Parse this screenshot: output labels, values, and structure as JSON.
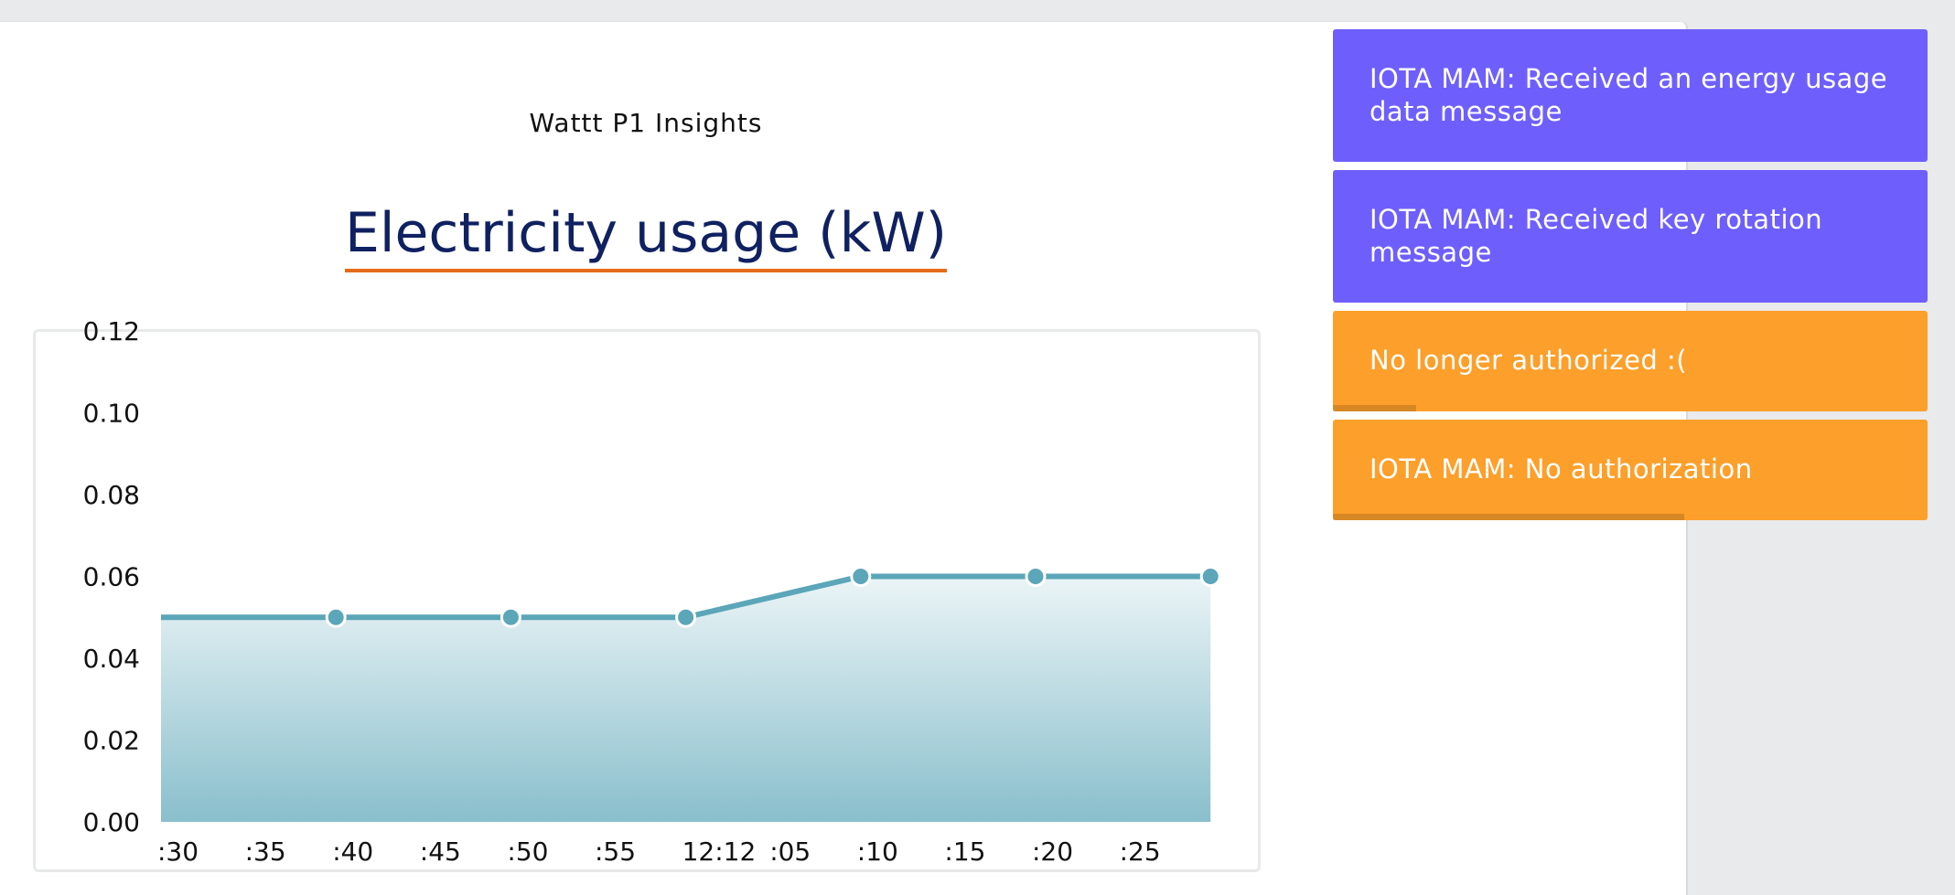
{
  "app": {
    "title": "Wattt P1 Insights"
  },
  "chart_data": {
    "type": "area",
    "title": "Electricity usage (kW)",
    "x_tick_labels": [
      ":30",
      ":35",
      ":40",
      ":45",
      ":50",
      ":55",
      "12:12",
      ":05",
      ":10",
      ":15",
      ":20",
      ":25"
    ],
    "y_tick_labels": [
      "0.00",
      "0.02",
      "0.04",
      "0.06",
      "0.08",
      "0.10",
      "0.12"
    ],
    "ylim": [
      0,
      0.12
    ],
    "grid": false,
    "series": [
      {
        "color": "#5ba6b8",
        "points": [
          {
            "x": ":30",
            "y": 0.05,
            "marker": false
          },
          {
            "x": ":40",
            "y": 0.05,
            "marker": true
          },
          {
            "x": ":50",
            "y": 0.05,
            "marker": true
          },
          {
            "x": "12:12",
            "y": 0.05,
            "marker": true
          },
          {
            "x": ":10",
            "y": 0.06,
            "marker": true
          },
          {
            "x": ":20",
            "y": 0.06,
            "marker": true
          },
          {
            "x": ":25+",
            "y": 0.06,
            "marker": true
          }
        ]
      }
    ]
  },
  "toasts": [
    {
      "type": "info",
      "message": "IOTA MAM: Received an energy usage data message",
      "progress": 0
    },
    {
      "type": "info",
      "message": "IOTA MAM: Received key rotation message",
      "progress": 0
    },
    {
      "type": "warning",
      "message": "No longer authorized :(",
      "progress": 0.14
    },
    {
      "type": "warning",
      "message": "IOTA MAM: No authorization",
      "progress": 0.59
    }
  ],
  "colors": {
    "page_background": "#e9eaeb",
    "chart_title": "#102161",
    "title_underline": "#e46b19",
    "line": "#5ba6b8",
    "toast_info": "#6e5ffd",
    "toast_warning": "#fd9f2b"
  }
}
